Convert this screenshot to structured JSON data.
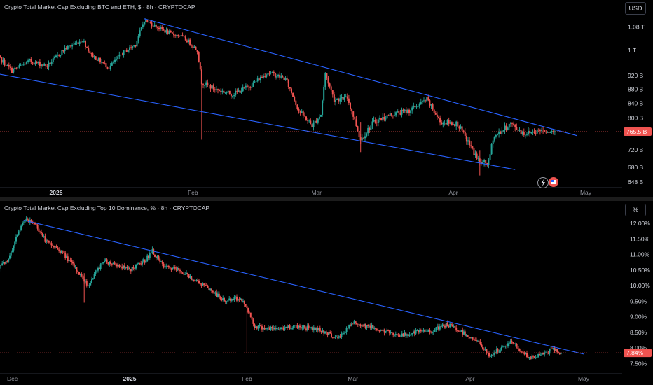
{
  "chart_data": [
    {
      "type": "candlestick",
      "title": "Crypto Total Market Cap Excluding BTC and ETH, $ · 8h · CRYPTOCAP",
      "currency_label": "USD",
      "y_ticks": [
        "1.08 T",
        "1 T",
        "920 B",
        "880 B",
        "840 B",
        "800 B",
        "720 B",
        "680 B",
        "648 B"
      ],
      "x_ticks": [
        "2025",
        "Feb",
        "Mar",
        "Apr",
        "May"
      ],
      "last_price_label": "765.5 B",
      "approx_path_B": [
        [
          "Dec 18",
          990
        ],
        [
          "Dec 22",
          935
        ],
        [
          "Dec 26",
          965
        ],
        [
          "Dec 30",
          950
        ],
        [
          "Jan 3",
          1005
        ],
        [
          "Jan 7",
          1035
        ],
        [
          "Jan 9",
          985
        ],
        [
          "Jan 13",
          945
        ],
        [
          "Jan 16",
          990
        ],
        [
          "Jan 19",
          1020
        ],
        [
          "Jan 21",
          1105
        ],
        [
          "Jan 24",
          1080
        ],
        [
          "Jan 27",
          1055
        ],
        [
          "Jan 29",
          1050
        ],
        [
          "Jan 31",
          1030
        ],
        [
          "Feb 2",
          1000
        ],
        [
          "Feb 3",
          900
        ],
        [
          "Feb 6",
          880
        ],
        [
          "Feb 10",
          865
        ],
        [
          "Feb 14",
          890
        ],
        [
          "Feb 18",
          930
        ],
        [
          "Feb 22",
          910
        ],
        [
          "Feb 25",
          820
        ],
        [
          "Feb 28",
          780
        ],
        [
          "Mar 2",
          810
        ],
        [
          "Mar 3",
          925
        ],
        [
          "Mar 5",
          850
        ],
        [
          "Mar 8",
          855
        ],
        [
          "Mar 11",
          745
        ],
        [
          "Mar 14",
          790
        ],
        [
          "Mar 18",
          810
        ],
        [
          "Mar 22",
          820
        ],
        [
          "Mar 26",
          850
        ],
        [
          "Mar 29",
          790
        ],
        [
          "Apr 2",
          785
        ],
        [
          "Apr 4",
          745
        ],
        [
          "Apr 7",
          690
        ],
        [
          "Apr 9",
          690
        ],
        [
          "Apr 10",
          750
        ],
        [
          "Apr 14",
          785
        ],
        [
          "Apr 17",
          760
        ],
        [
          "Apr 21",
          770
        ],
        [
          "Apr 24",
          765
        ]
      ],
      "trendlines": [
        {
          "from": [
            "Jan 21",
            1110
          ],
          "to": [
            "Apr 29",
            755
          ]
        },
        {
          "from": [
            "Dec 15",
            935
          ],
          "to": [
            "Apr 15",
            675
          ]
        }
      ]
    },
    {
      "type": "candlestick",
      "title": "Crypto Total Market Cap Excluding Top 10 Dominance, % · 8h · CRYPTOCAP",
      "currency_label": "%",
      "y_ticks": [
        "12.00%",
        "11.50%",
        "11.00%",
        "10.50%",
        "10.00%",
        "9.50%",
        "9.00%",
        "8.50%",
        "8.00%",
        "7.50%"
      ],
      "x_ticks": [
        "Dec",
        "2025",
        "Feb",
        "Mar",
        "Apr",
        "May"
      ],
      "last_price_label": "7.84%",
      "approx_path_pct": [
        [
          "Nov 26",
          10.5
        ],
        [
          "Nov 30",
          10.8
        ],
        [
          "Dec 2",
          11.5
        ],
        [
          "Dec 4",
          12.1
        ],
        [
          "Dec 7",
          12.0
        ],
        [
          "Dec 10",
          11.4
        ],
        [
          "Dec 14",
          11.1
        ],
        [
          "Dec 18",
          10.5
        ],
        [
          "Dec 21",
          10.0
        ],
        [
          "Dec 25",
          10.8
        ],
        [
          "Dec 28",
          10.7
        ],
        [
          "Jan 1",
          10.5
        ],
        [
          "Jan 5",
          10.8
        ],
        [
          "Jan 7",
          11.1
        ],
        [
          "Jan 10",
          10.6
        ],
        [
          "Jan 14",
          10.5
        ],
        [
          "Jan 18",
          10.2
        ],
        [
          "Jan 22",
          9.9
        ],
        [
          "Jan 26",
          9.5
        ],
        [
          "Jan 30",
          9.6
        ],
        [
          "Feb 1",
          9.3
        ],
        [
          "Feb 3",
          8.7
        ],
        [
          "Feb 8",
          8.6
        ],
        [
          "Feb 14",
          8.7
        ],
        [
          "Feb 20",
          8.6
        ],
        [
          "Feb 25",
          8.3
        ],
        [
          "Mar 1",
          8.8
        ],
        [
          "Mar 5",
          8.7
        ],
        [
          "Mar 10",
          8.5
        ],
        [
          "Mar 14",
          8.4
        ],
        [
          "Mar 18",
          8.5
        ],
        [
          "Mar 22",
          8.55
        ],
        [
          "Mar 26",
          8.75
        ],
        [
          "Mar 30",
          8.5
        ],
        [
          "Apr 3",
          8.2
        ],
        [
          "Apr 6",
          7.75
        ],
        [
          "Apr 9",
          7.95
        ],
        [
          "Apr 12",
          8.2
        ],
        [
          "Apr 15",
          7.85
        ],
        [
          "Apr 17",
          7.65
        ],
        [
          "Apr 20",
          7.8
        ],
        [
          "Apr 23",
          7.95
        ],
        [
          "Apr 25",
          7.84
        ]
      ],
      "trendlines": [
        {
          "from": [
            "Dec 4",
            12.1
          ],
          "to": [
            "May 1",
            7.8
          ]
        }
      ]
    }
  ],
  "colors": {
    "up": "#26a69a",
    "down": "#ef5350",
    "trendline": "#2962ff",
    "lastline": "#ef5350"
  }
}
